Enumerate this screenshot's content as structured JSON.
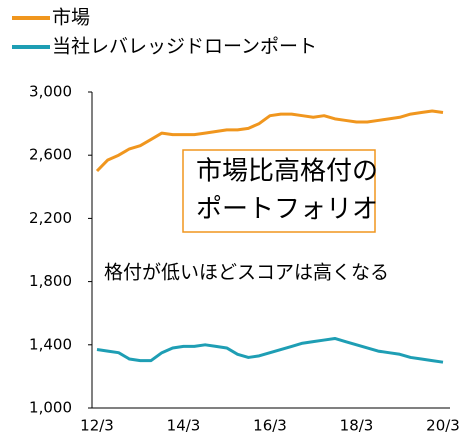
{
  "chart_data": {
    "type": "line",
    "categories": [
      "12/3",
      null,
      null,
      null,
      null,
      null,
      null,
      null,
      "14/3",
      null,
      null,
      null,
      null,
      null,
      null,
      null,
      "16/3",
      null,
      null,
      null,
      null,
      null,
      null,
      null,
      "18/3",
      null,
      null,
      null,
      null,
      null,
      null,
      null,
      "20/3"
    ],
    "series": [
      {
        "name": "市場",
        "color": "#f0961e",
        "values": [
          2500,
          2570,
          2600,
          2640,
          2660,
          2700,
          2740,
          2730,
          2730,
          2730,
          2740,
          2750,
          2760,
          2760,
          2770,
          2800,
          2850,
          2860,
          2860,
          2850,
          2840,
          2850,
          2830,
          2820,
          2810,
          2810,
          2820,
          2830,
          2840,
          2860,
          2870,
          2880,
          2870
        ]
      },
      {
        "name": "当社レバレッジドローンポート",
        "color": "#1e9eb4",
        "values": [
          1370,
          1360,
          1350,
          1310,
          1300,
          1300,
          1350,
          1380,
          1390,
          1390,
          1400,
          1390,
          1380,
          1340,
          1320,
          1330,
          1350,
          1370,
          1390,
          1410,
          1420,
          1430,
          1440,
          1420,
          1400,
          1380,
          1360,
          1350,
          1340,
          1320,
          1310,
          1300,
          1290
        ]
      }
    ],
    "ylim": [
      1000,
      3000
    ],
    "yticks": [
      {
        "value": 1000,
        "label": "1,000"
      },
      {
        "value": 1400,
        "label": "1,400"
      },
      {
        "value": 1800,
        "label": "1,800"
      },
      {
        "value": 2200,
        "label": "2,200"
      },
      {
        "value": 2600,
        "label": "2,600"
      },
      {
        "value": 3000,
        "label": "3,000"
      }
    ],
    "annotations": [
      "市場比高格付の",
      "ポートフォリオ",
      "格付が低いほどスコアは高くなる"
    ]
  }
}
